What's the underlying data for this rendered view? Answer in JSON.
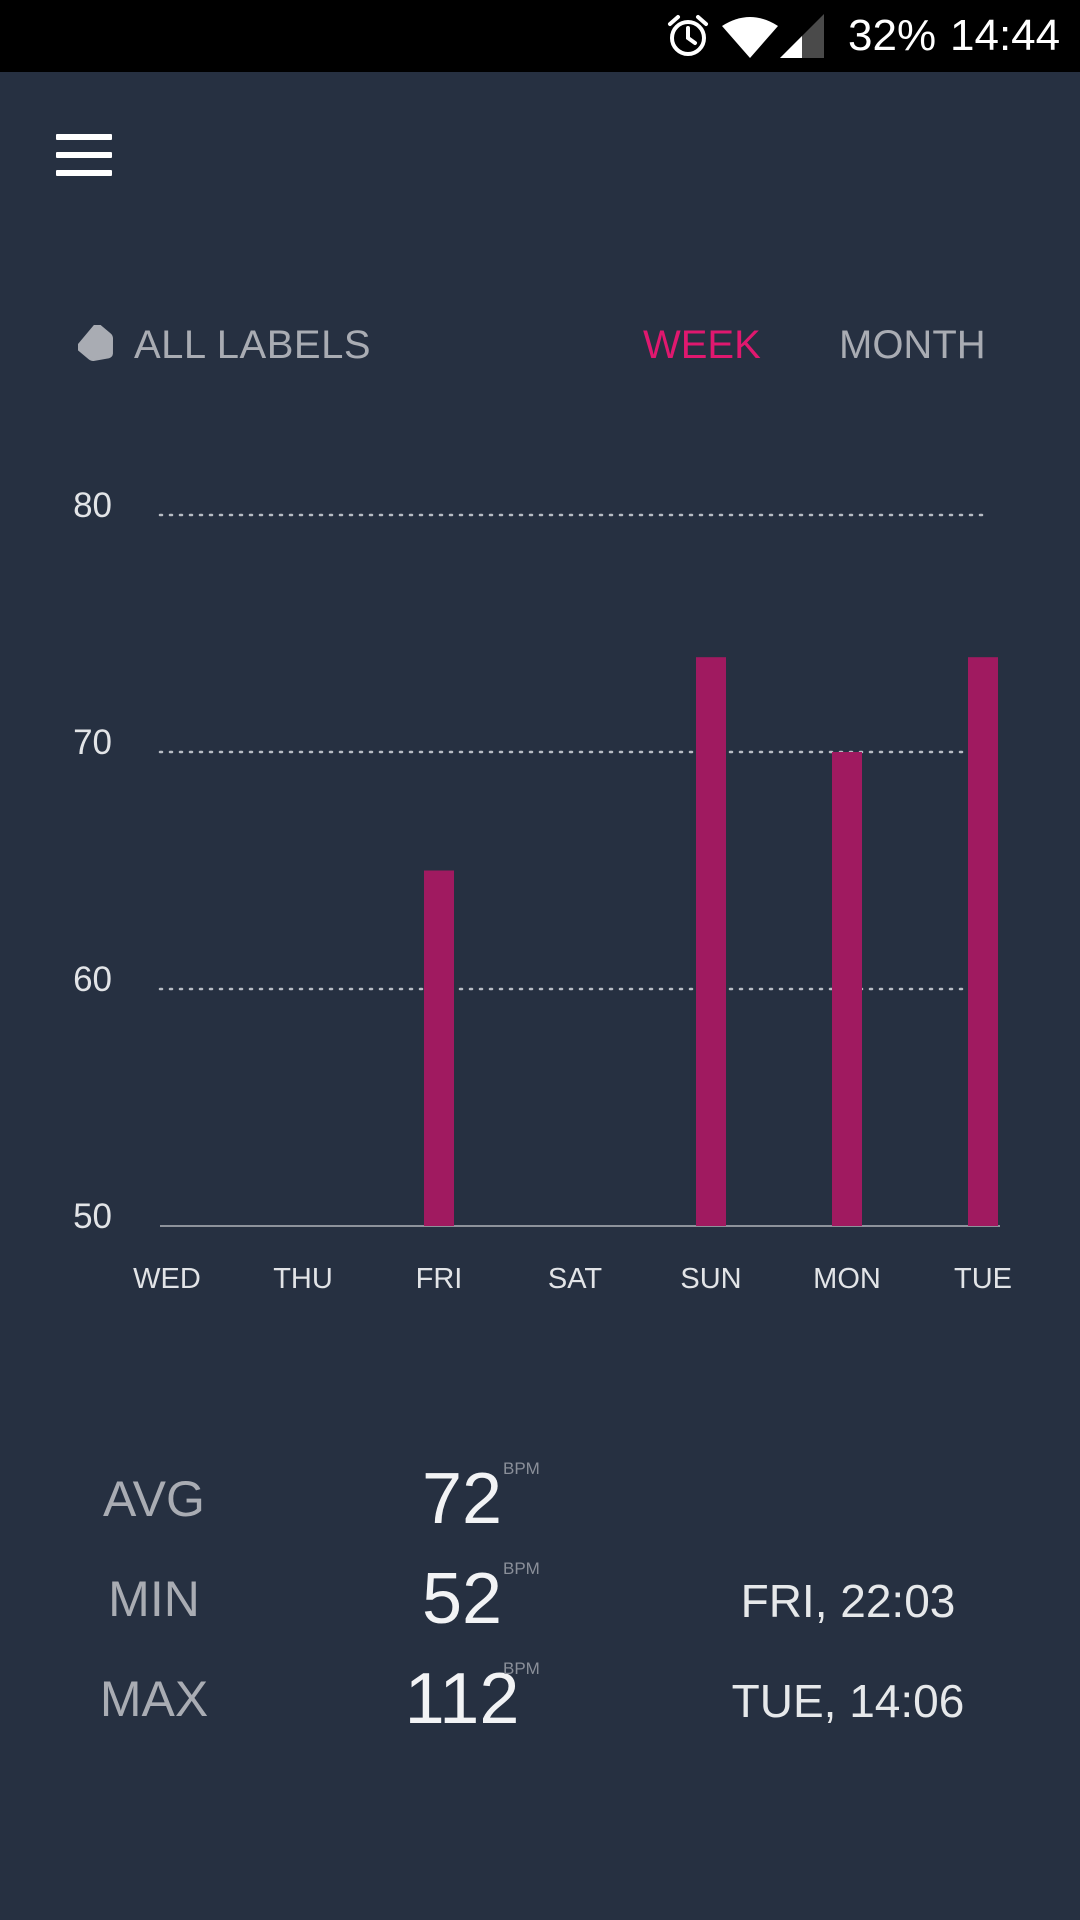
{
  "status_bar": {
    "battery": "32%",
    "time": "14:44",
    "icons": [
      "alarm-icon",
      "wifi-icon",
      "signal-icon"
    ]
  },
  "header": {
    "menu_icon": "hamburger-menu-icon"
  },
  "filters": {
    "labels_icon": "tag-icon",
    "labels_text": "ALL LABELS",
    "ranges": [
      {
        "label": "WEEK",
        "active": true
      },
      {
        "label": "MONTH",
        "active": false
      }
    ],
    "accent_color": "#e0186f"
  },
  "chart_data": {
    "type": "bar",
    "categories": [
      "WED",
      "THU",
      "FRI",
      "SAT",
      "SUN",
      "MON",
      "TUE"
    ],
    "values": [
      null,
      null,
      65,
      null,
      74,
      70,
      74
    ],
    "y_ticks": [
      "80",
      "70",
      "60",
      "50"
    ],
    "ylim": [
      50,
      80
    ],
    "grid": "dotted horizontal",
    "bar_color": "#a01a60",
    "title": "",
    "xlabel": "",
    "ylabel": ""
  },
  "stats": [
    {
      "label": "AVG",
      "value": "72",
      "unit": "BPM",
      "time": ""
    },
    {
      "label": "MIN",
      "value": "52",
      "unit": "BPM",
      "time": "FRI, 22:03"
    },
    {
      "label": "MAX",
      "value": "112",
      "unit": "BPM",
      "time": "TUE, 14:06"
    }
  ]
}
